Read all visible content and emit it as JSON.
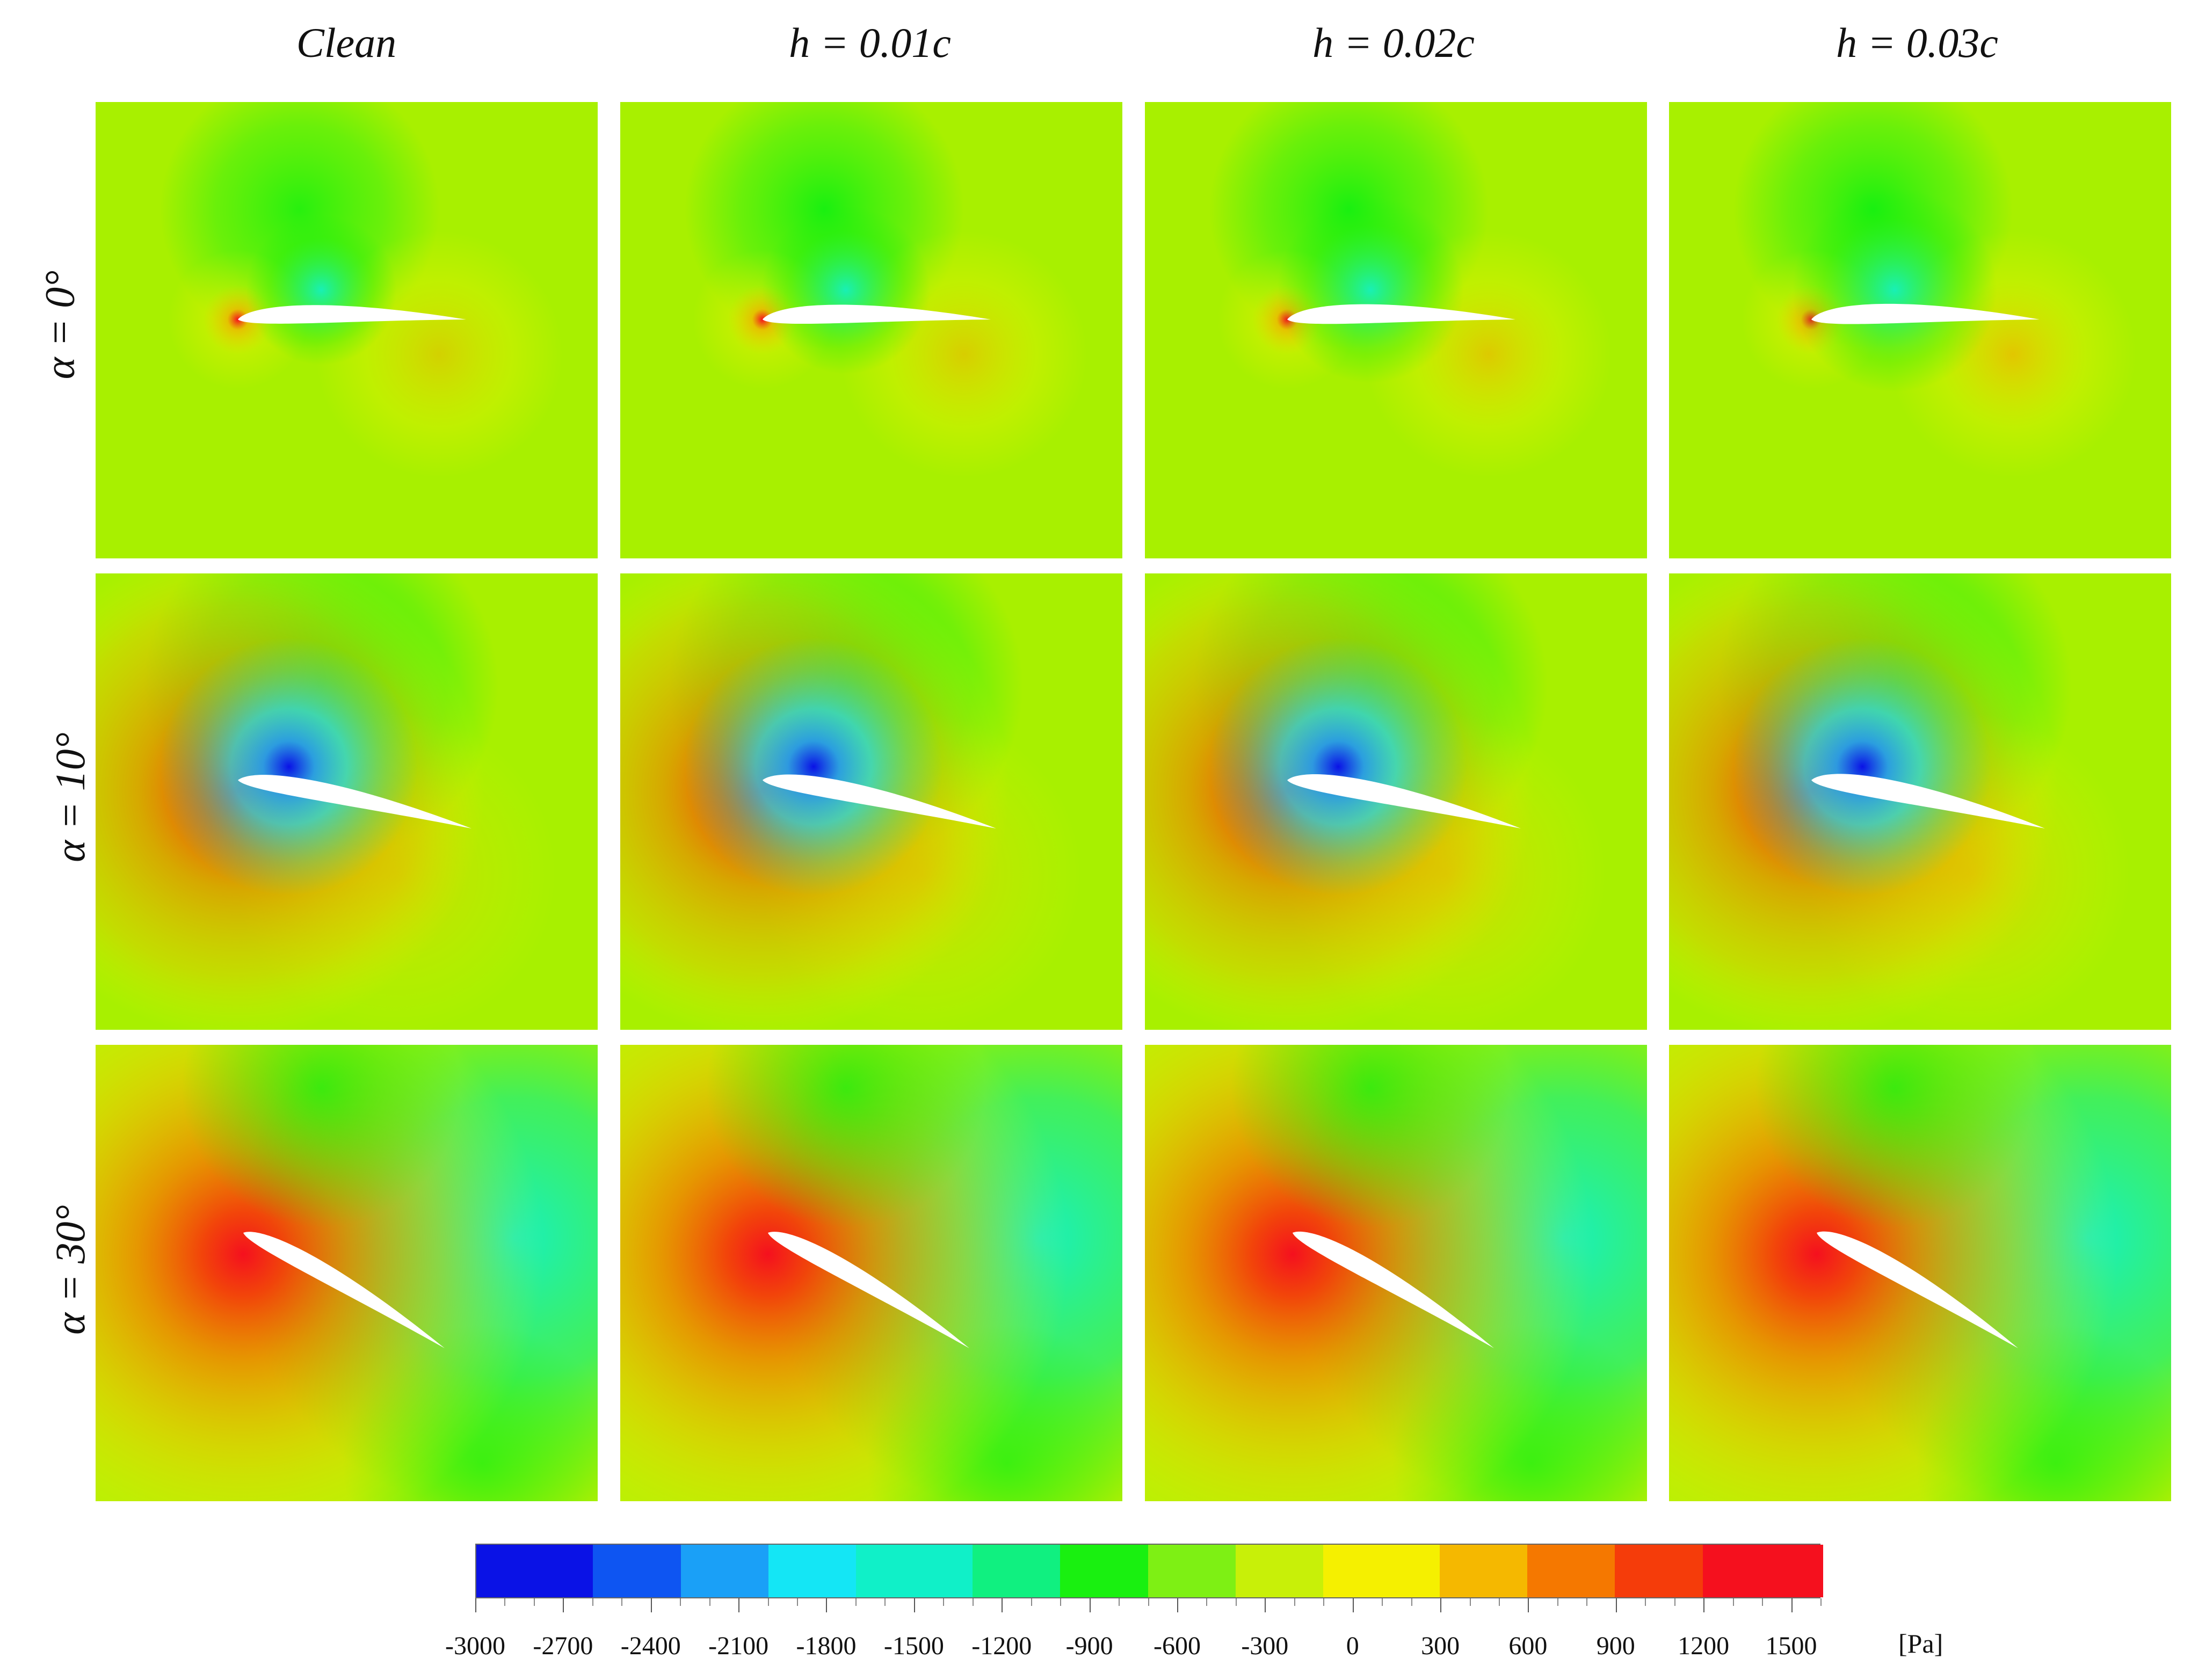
{
  "figure": {
    "columns": [
      {
        "label": "Clean"
      },
      {
        "label": "h = 0.01c"
      },
      {
        "label": "h = 0.02c"
      },
      {
        "label": "h = 0.03c"
      }
    ],
    "rows": [
      {
        "label": "α = 0°",
        "alpha_deg": 0
      },
      {
        "label": "α = 10°",
        "alpha_deg": 10
      },
      {
        "label": "α = 30°",
        "alpha_deg": 30
      }
    ],
    "colorbar": {
      "unit": "[Pa]",
      "min": -3000,
      "max": 1600,
      "tick_labels": [
        "-3000",
        "-2700",
        "-2400",
        "-2100",
        "-1800",
        "-1500",
        "-1200",
        "-900",
        "-600",
        "-300",
        "0",
        "300",
        "600",
        "900",
        "1200",
        "1500"
      ],
      "colors": [
        "#0a12e6",
        "#0e55f2",
        "#1aa0f7",
        "#14e6f5",
        "#10f0c8",
        "#10f080",
        "#19f010",
        "#7ef014",
        "#c8f008",
        "#f5f000",
        "#f5b800",
        "#f57800",
        "#f53c0a",
        "#f5101e"
      ]
    },
    "colors": {
      "background_field": "#a8f000",
      "suction_peak": "#0a12e6",
      "stagnation_peak": "#f5101e"
    }
  }
}
